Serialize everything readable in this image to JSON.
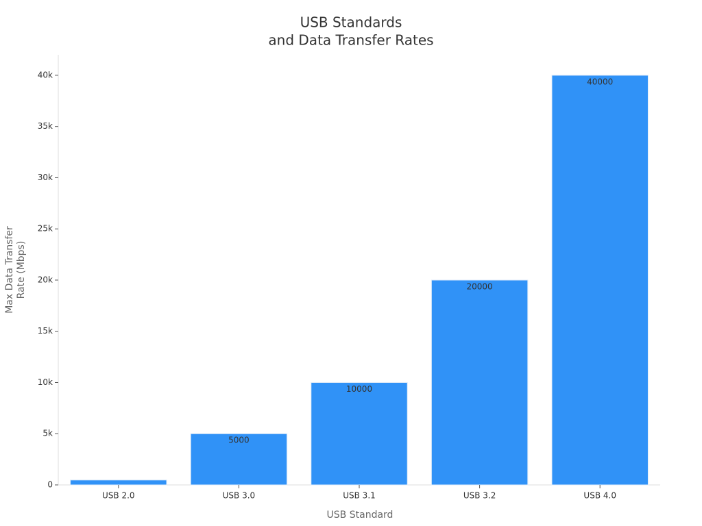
{
  "chart_data": {
    "type": "bar",
    "title": [
      "USB Standards",
      "and Data Transfer Rates"
    ],
    "x_label": "USB Standard",
    "y_label": [
      "Max Data Transfer",
      "Rate (Mbps)"
    ],
    "categories": [
      "USB 2.0",
      "USB 3.0",
      "USB 3.1",
      "USB 3.2",
      "USB 4.0"
    ],
    "values": [
      480,
      5000,
      10000,
      20000,
      40000
    ],
    "color": "#3092f7",
    "ylim": [
      0,
      42000
    ],
    "yticks": [
      0,
      {
        "value": 5000,
        "label": "5k"
      },
      {
        "value": 10000,
        "label": "10k"
      },
      {
        "value": 15000,
        "label": "15k"
      },
      {
        "value": 20000,
        "label": "20k"
      },
      {
        "value": 25000,
        "label": "25k"
      },
      {
        "value": 30000,
        "label": "30k"
      },
      {
        "value": 35000,
        "label": "35k"
      },
      {
        "value": 40000,
        "label": "40k"
      }
    ],
    "grid": false
  }
}
